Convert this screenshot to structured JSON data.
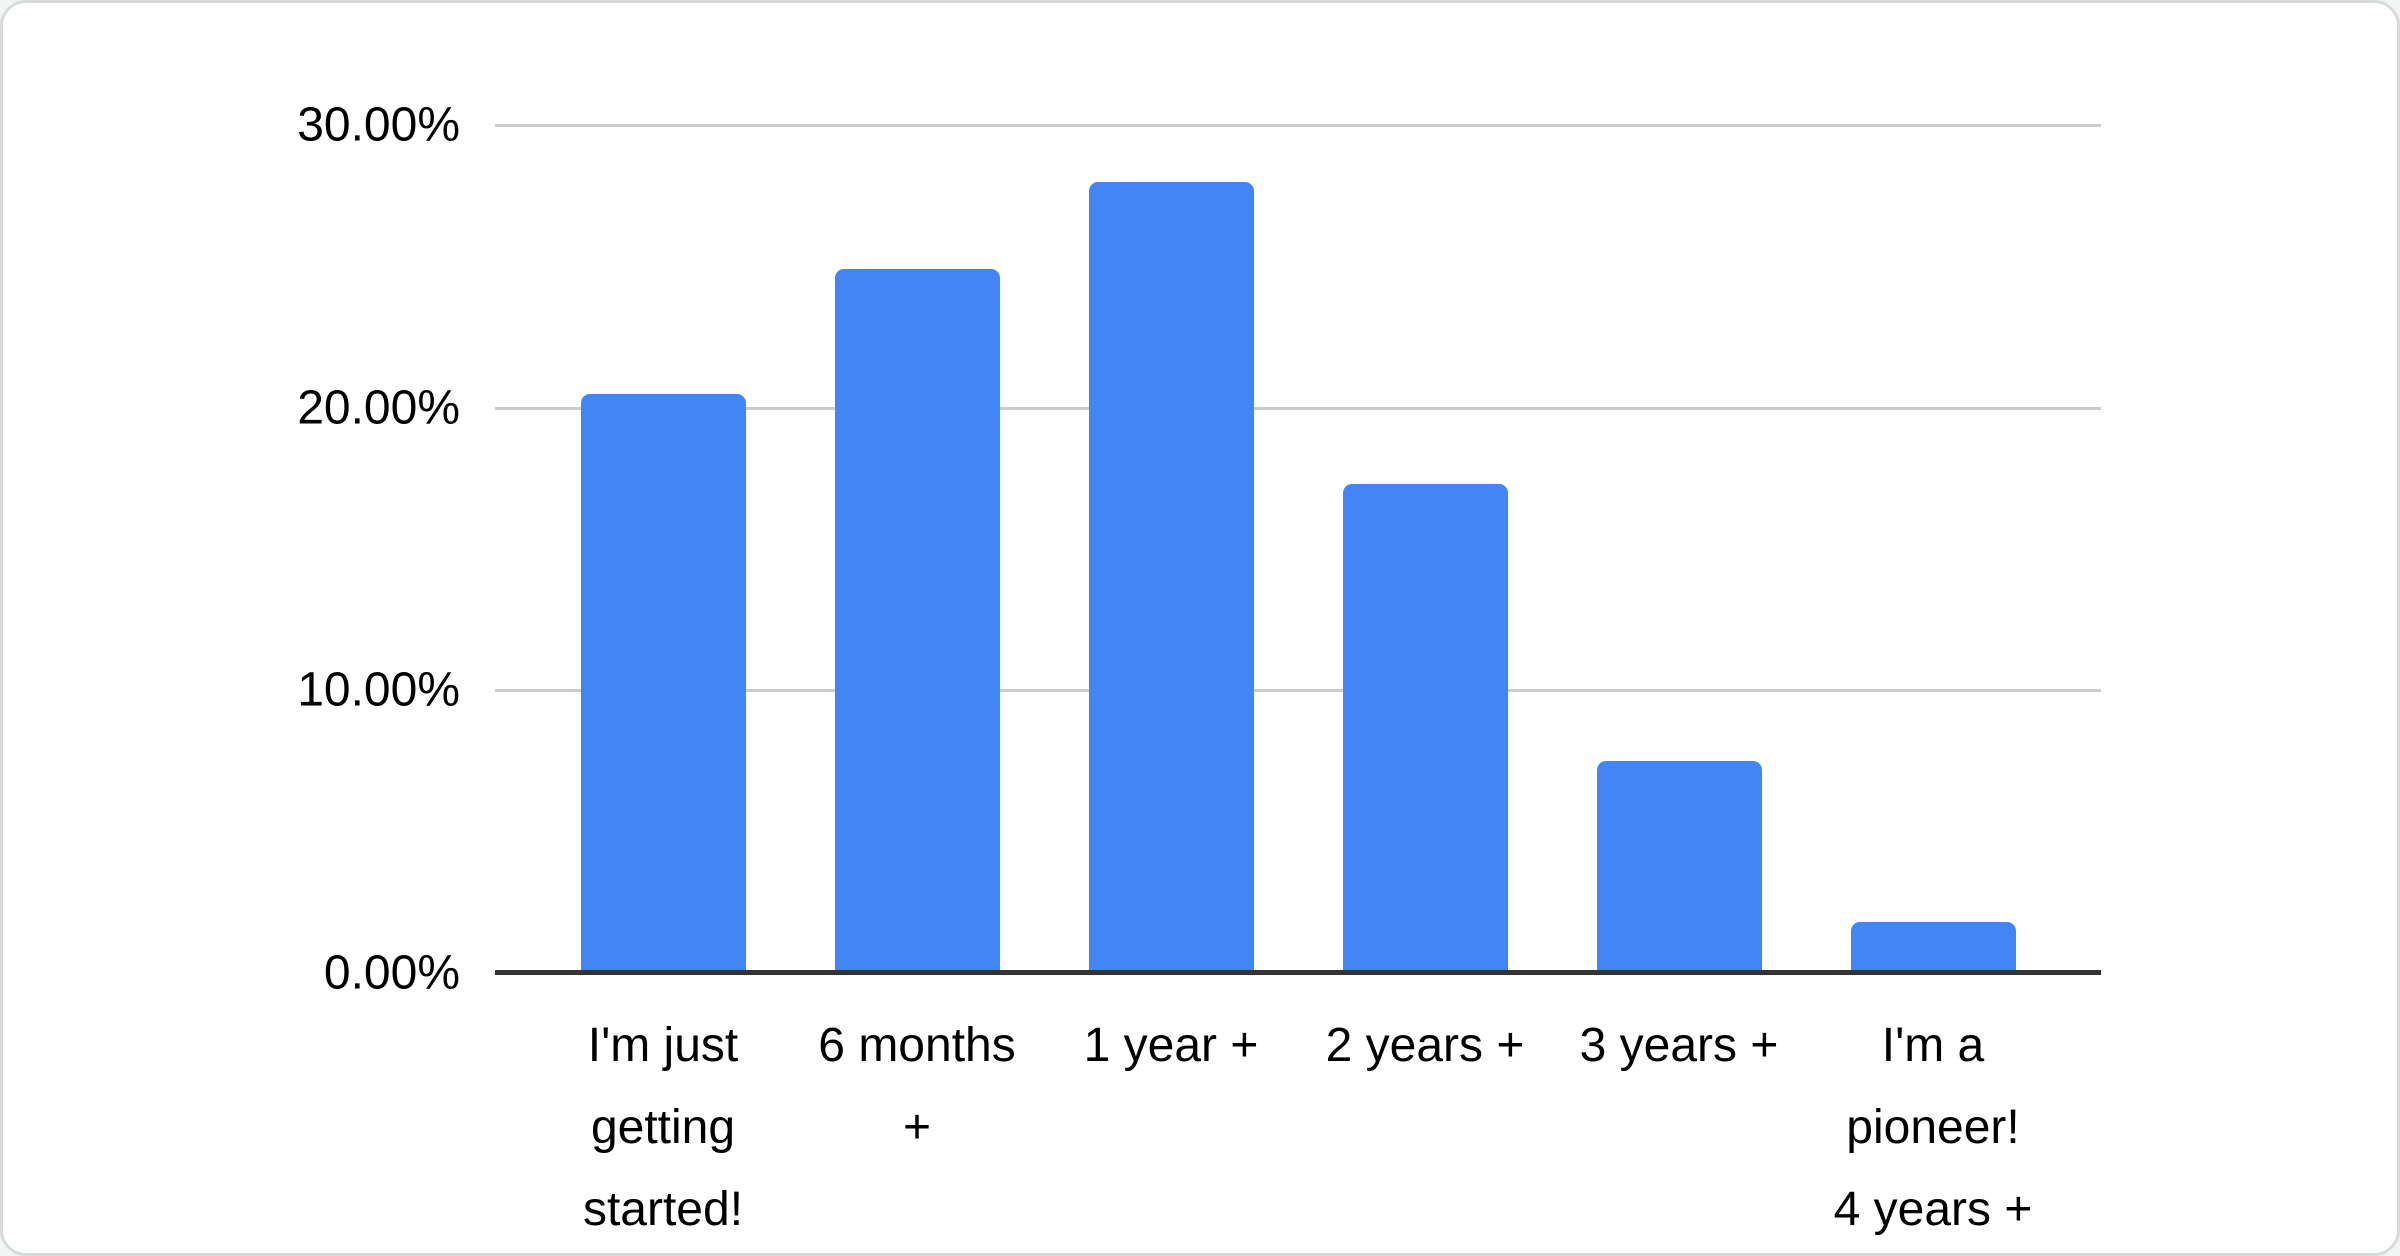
{
  "chart_data": {
    "type": "bar",
    "title": "",
    "categories": [
      "I'm just getting started!",
      "6 months +",
      "1 year +",
      "2 years +",
      "3 years +",
      "I'm a pioneer! 4 years +"
    ],
    "values": [
      20.5,
      24.9,
      28.0,
      17.3,
      7.5,
      1.8
    ],
    "value_unit": "percent",
    "xlabel": "",
    "ylabel": "",
    "ylim": [
      0,
      30
    ],
    "y_ticks": [
      {
        "label": "30.00%",
        "value": 30
      },
      {
        "label": "20.00%",
        "value": 20
      },
      {
        "label": "10.00%",
        "value": 10
      },
      {
        "label": "0.00%",
        "value": 0
      }
    ],
    "grid": true,
    "legend": "none",
    "x_label_lines": [
      [
        "I'm just",
        "getting",
        "started!"
      ],
      [
        "6 months",
        "+"
      ],
      [
        "1 year +"
      ],
      [
        "2 years +"
      ],
      [
        "3 years +"
      ],
      [
        "I'm a",
        "pioneer!",
        "4 years +"
      ]
    ]
  },
  "colors": {
    "bar": "#4285f4",
    "gridline": "#cccccc",
    "axis_line": "#333333",
    "label_text": "#000000",
    "card_background": "#ffffff",
    "card_border": "#d7dbde"
  }
}
